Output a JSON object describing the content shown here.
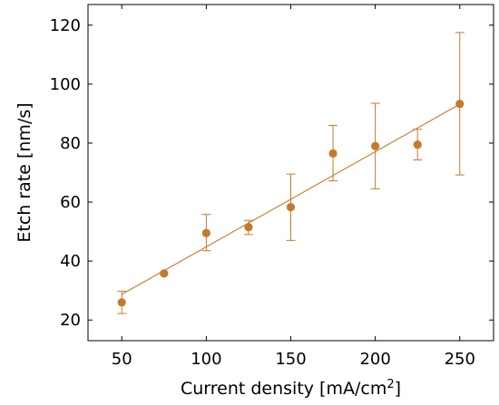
{
  "chart_data": {
    "type": "scatter",
    "xlabel": "Current density [mA/cm",
    "xlabel_superscript": "2",
    "xlabel_suffix": "]",
    "ylabel": "Etch rate [nm/s]",
    "xlim": [
      30,
      270
    ],
    "ylim": [
      13,
      127
    ],
    "xticks": [
      50,
      100,
      150,
      200,
      250
    ],
    "yticks": [
      20,
      40,
      60,
      80,
      100,
      120
    ],
    "grid": false,
    "colors": {
      "series": "#c47a2c",
      "axis": "#000000"
    },
    "series": [
      {
        "x": [
          50,
          75,
          100,
          125,
          150,
          175,
          200,
          225,
          250
        ],
        "y": [
          26,
          35.8,
          49.5,
          51.5,
          58.3,
          76.5,
          79,
          79.5,
          93.3
        ],
        "yerr_low": [
          22.2,
          35.8,
          43.5,
          49,
          47,
          67.2,
          64.5,
          74.3,
          69.2
        ],
        "yerr_high": [
          29.8,
          35.8,
          55.8,
          53.8,
          69.5,
          86,
          93.5,
          84.7,
          117.5
        ]
      }
    ],
    "fit_line": {
      "x": [
        50,
        250
      ],
      "y": [
        28.7,
        93.2
      ]
    }
  }
}
